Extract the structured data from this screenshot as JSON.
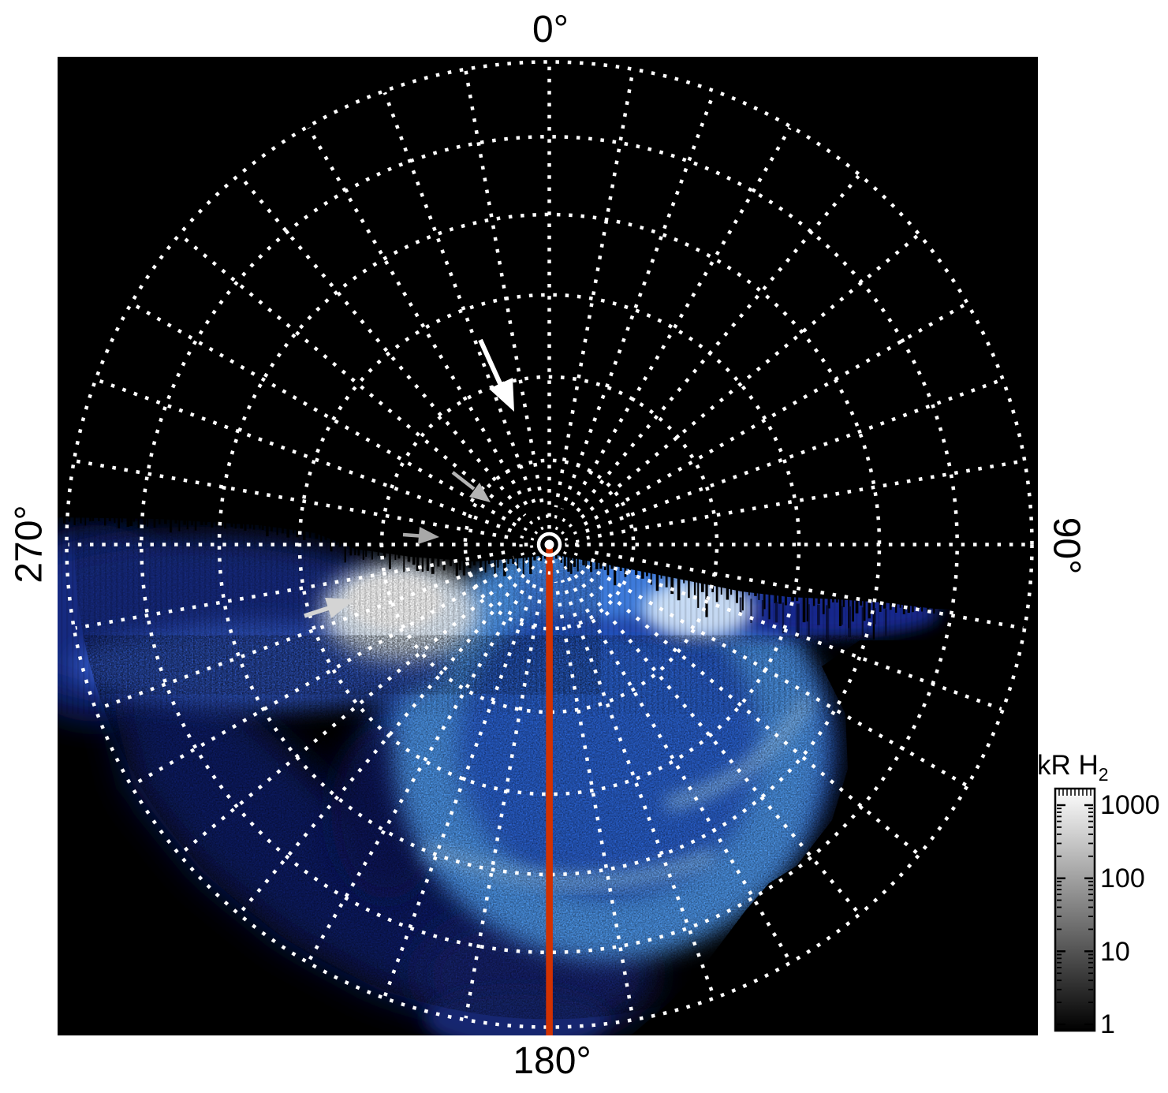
{
  "labels": {
    "top": "0°",
    "right": "90°",
    "bottom": "180°",
    "left": "270°"
  },
  "colorbar": {
    "title_main": "kR H",
    "title_sub": "2",
    "ticks": [
      "1000",
      "100",
      "10",
      "1"
    ]
  },
  "chart_data": {
    "type": "heatmap",
    "title": "",
    "projection": "pole-centered azimuthal polar projection on black square panel",
    "angular_axis": {
      "tick_labels": [
        "0°",
        "90°",
        "180°",
        "270°"
      ],
      "label_positions": [
        "top",
        "right (rotated 90° cw)",
        "bottom",
        "left (rotated 90° ccw)"
      ],
      "meridian_gridline_step_deg": 10,
      "gridline_style": "white dotted"
    },
    "radial_axis": {
      "rings_colatitude_deg": [
        10,
        20,
        30,
        40,
        50,
        60
      ],
      "extra_inner_circles": "two small dotted circles and one solid circle ring the pole",
      "ring_spacing": "near equal-area scaling, spacing shrinks slightly outward",
      "gridline_style": "white dotted"
    },
    "colorbar": {
      "title": "kR H2",
      "scale": "log",
      "range": [
        1,
        1000
      ],
      "tick_values": [
        1000,
        100,
        10,
        1
      ],
      "colormap": "grayscale, white = bright (1000 kR), black = faint (1 kR)"
    },
    "image_content": "Blue/white H2 auroral emission map: a bright horizontal emission band just below the 270°-90° line on the left half reaching the outer edge at 270°, an intensely white region near 300°-315° azimuth at mid radii, a broad bright-blue auroral oval filling the 90°-270° (southern/dayside-lower) half with lighter arc striations, a thinner dark-blue band extending toward 90°, and faint noisy dark-blue diffuse emission filling the lower-left sector out to the 60° ring; upper half away from the band is black (no data).",
    "annotations": [
      {
        "name": "red-meridian-line",
        "desc": "solid red-orange line from the pole along the 180° meridian to the panel edge",
        "color": "#d13102"
      },
      {
        "name": "pole-marker",
        "desc": "white bulls-eye (solid dot, solid ring, two dotted rings) at the pole"
      },
      {
        "name": "white-arrow-upper",
        "desc": "large white arrow pointing down-right toward the pole near the 350° meridian at mid radius",
        "from": [
          609,
          431
        ],
        "to": [
          652,
          522
        ],
        "color": "#ffffff"
      },
      {
        "name": "gray-arrow-upper",
        "desc": "small gray arrow pointing down-right toward the pole",
        "from": [
          574,
          599
        ],
        "to": [
          622,
          637
        ],
        "color": "#b4b4b4"
      },
      {
        "name": "gray-arrow-lower",
        "desc": "small gray arrow pointing right just above the 270°-90° line",
        "from": [
          511,
          678
        ],
        "to": [
          557,
          681
        ],
        "color": "#a8a8a8"
      },
      {
        "name": "white-arrow-in-aurora",
        "desc": "light arrow pointing up-right at the bright emission region",
        "from": [
          386,
          781
        ],
        "to": [
          450,
          760
        ],
        "color": "#d4d4d4"
      }
    ],
    "panel": {
      "background": "#000000",
      "page_background": "#ffffff"
    }
  }
}
